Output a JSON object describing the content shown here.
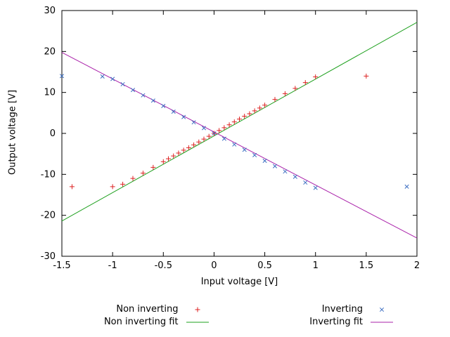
{
  "chart_data": {
    "type": "scatter",
    "title": "",
    "xlabel": "Input voltage [V]",
    "ylabel": "Output voltage [V]",
    "xlim": [
      -1.5,
      2
    ],
    "ylim": [
      -30,
      30
    ],
    "x_ticks": [
      -1.5,
      -1,
      -0.5,
      0,
      0.5,
      1,
      1.5,
      2
    ],
    "x_tick_labels": [
      "-1.5",
      "-1",
      "-0.5",
      "0",
      "0.5",
      "1",
      "1.5",
      "2"
    ],
    "y_ticks": [
      -30,
      -20,
      -10,
      0,
      10,
      20,
      30
    ],
    "y_tick_labels": [
      "-30",
      "-20",
      "-10",
      "0",
      "10",
      "20",
      "30"
    ],
    "grid": false,
    "legend_position": "below-center-two-columns",
    "axis_color": "#000000",
    "background_color": "#ffffff",
    "series": [
      {
        "name": "Non inverting",
        "type": "points",
        "marker": "plus",
        "color": "#dd2222",
        "points": [
          [
            -1.4,
            -13.0
          ],
          [
            -1.0,
            -13.0
          ],
          [
            -0.9,
            -12.4
          ],
          [
            -0.8,
            -11.0
          ],
          [
            -0.7,
            -9.7
          ],
          [
            -0.6,
            -8.3
          ],
          [
            -0.5,
            -6.9
          ],
          [
            -0.45,
            -6.2
          ],
          [
            -0.4,
            -5.5
          ],
          [
            -0.35,
            -4.8
          ],
          [
            -0.3,
            -4.1
          ],
          [
            -0.25,
            -3.5
          ],
          [
            -0.2,
            -2.8
          ],
          [
            -0.15,
            -2.1
          ],
          [
            -0.1,
            -1.4
          ],
          [
            -0.05,
            -0.7
          ],
          [
            0,
            0
          ],
          [
            0.05,
            0.7
          ],
          [
            0.1,
            1.4
          ],
          [
            0.15,
            2.1
          ],
          [
            0.2,
            2.8
          ],
          [
            0.25,
            3.5
          ],
          [
            0.3,
            4.2
          ],
          [
            0.35,
            4.8
          ],
          [
            0.4,
            5.5
          ],
          [
            0.45,
            6.2
          ],
          [
            0.5,
            6.9
          ],
          [
            0.6,
            8.3
          ],
          [
            0.7,
            9.7
          ],
          [
            0.8,
            11.0
          ],
          [
            0.9,
            12.4
          ],
          [
            1.0,
            13.8
          ],
          [
            1.5,
            14.0
          ]
        ]
      },
      {
        "name": "Inverting",
        "type": "points",
        "marker": "cross",
        "color": "#3d6fc2",
        "points": [
          [
            -1.5,
            14.0
          ],
          [
            -1.1,
            13.9
          ],
          [
            -1.0,
            13.3
          ],
          [
            -0.9,
            12.0
          ],
          [
            -0.8,
            10.6
          ],
          [
            -0.7,
            9.3
          ],
          [
            -0.6,
            8.0
          ],
          [
            -0.5,
            6.7
          ],
          [
            -0.4,
            5.3
          ],
          [
            -0.3,
            4.0
          ],
          [
            -0.2,
            2.7
          ],
          [
            -0.1,
            1.3
          ],
          [
            0,
            0
          ],
          [
            0.1,
            -1.3
          ],
          [
            0.2,
            -2.7
          ],
          [
            0.3,
            -4.0
          ],
          [
            0.4,
            -5.3
          ],
          [
            0.5,
            -6.7
          ],
          [
            0.6,
            -8.0
          ],
          [
            0.7,
            -9.3
          ],
          [
            0.8,
            -10.6
          ],
          [
            0.9,
            -12.0
          ],
          [
            1.0,
            -13.3
          ],
          [
            1.9,
            -13.0
          ]
        ]
      }
    ],
    "fits": [
      {
        "name": "Non inverting fit",
        "type": "line",
        "color": "#1ea01e",
        "slope": 13.86,
        "intercept": -0.6
      },
      {
        "name": "Inverting fit",
        "type": "line",
        "color": "#aa22aa",
        "slope": -12.95,
        "intercept": 0.35
      }
    ]
  }
}
